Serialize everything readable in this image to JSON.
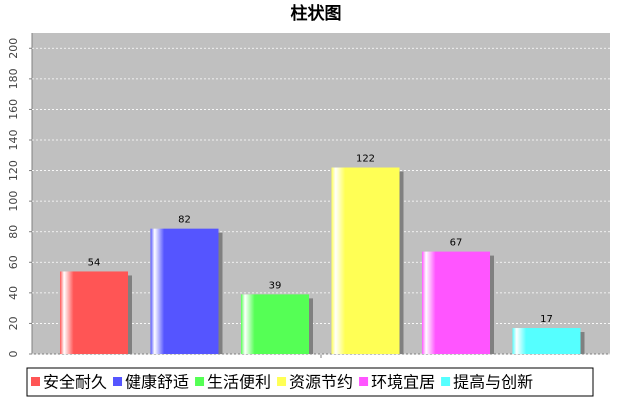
{
  "chart_data": {
    "type": "bar",
    "title": "柱状图",
    "categories": [
      null
    ],
    "series": [
      {
        "name": "安全耐久",
        "color": "#ff5555",
        "values": [
          54
        ]
      },
      {
        "name": "健康舒适",
        "color": "#5555ff",
        "values": [
          82
        ]
      },
      {
        "name": "生活便利",
        "color": "#55ff55",
        "values": [
          39
        ]
      },
      {
        "name": "资源节约",
        "color": "#ffff55",
        "values": [
          122
        ]
      },
      {
        "name": "环境宜居",
        "color": "#ff55ff",
        "values": [
          67
        ]
      },
      {
        "name": "提高与创新",
        "color": "#55ffff",
        "values": [
          17
        ]
      }
    ],
    "ylim": [
      0,
      210
    ],
    "yticks": [
      0,
      20,
      40,
      60,
      80,
      100,
      120,
      140,
      160,
      180,
      200
    ],
    "grid": true,
    "legend": "bottom"
  }
}
